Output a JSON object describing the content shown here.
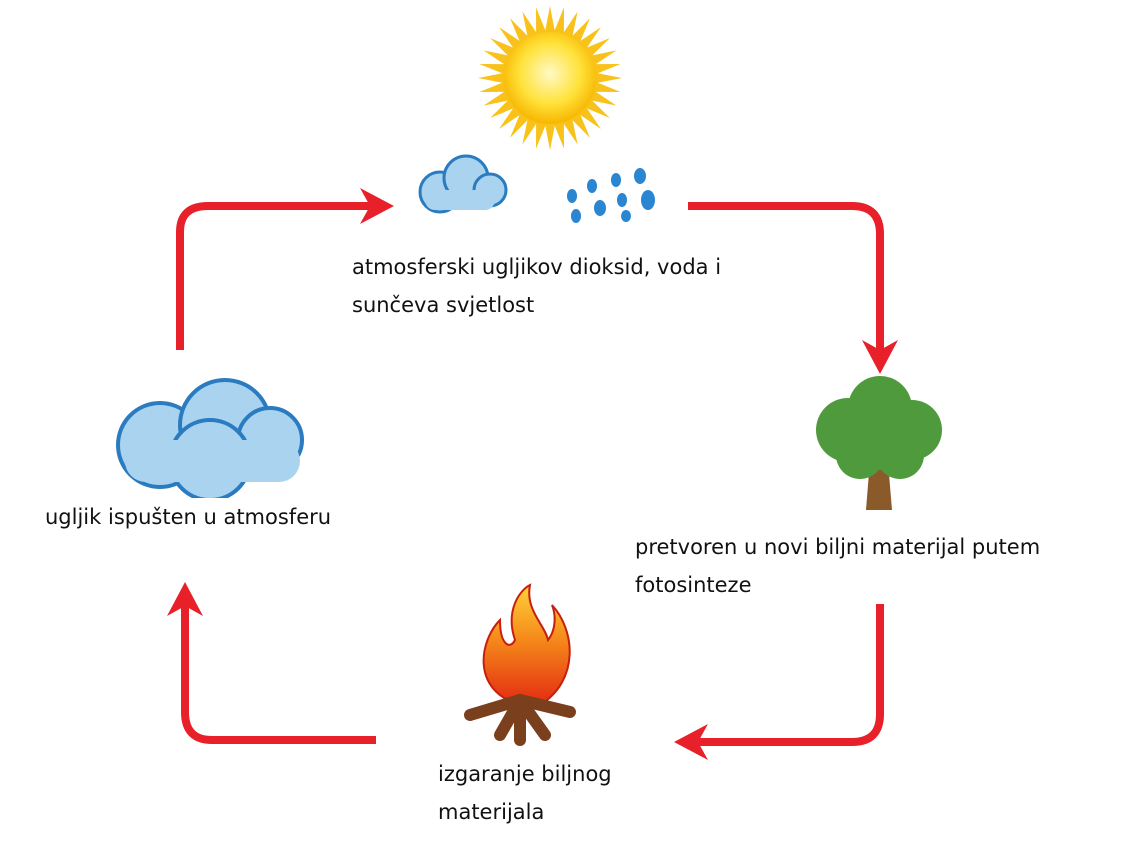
{
  "nodes": [
    {
      "lines": [
        "atmosferski ugljikov dioksid, voda i",
        "sunčeva svjetlost"
      ]
    },
    {
      "lines": [
        "pretvoren u novi biljni materijal putem",
        "fotosinteze"
      ]
    },
    {
      "lines": [
        "izgaranje biljnog",
        "materijala"
      ]
    },
    {
      "lines": [
        "ugljik ispušten u atmosferu"
      ]
    }
  ]
}
